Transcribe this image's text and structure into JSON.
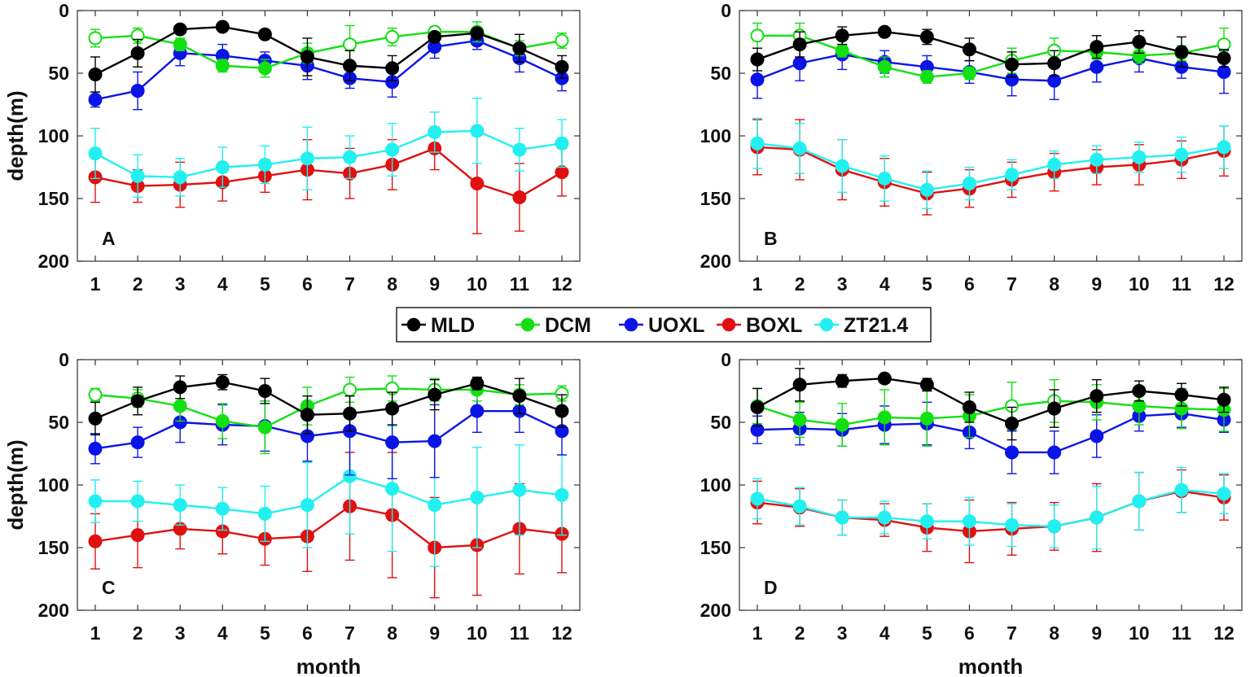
{
  "chart_data": {
    "type": "line",
    "xlabel": "month",
    "ylabel": "depth(m)",
    "categories": [
      "1",
      "2",
      "3",
      "4",
      "5",
      "6",
      "7",
      "8",
      "9",
      "10",
      "11",
      "12"
    ],
    "ylim": [
      0,
      200
    ],
    "y_reversed": true,
    "yticks": [
      "0",
      "50",
      "100",
      "150",
      "200"
    ],
    "grid": false,
    "legend": {
      "position": "center",
      "entries": [
        {
          "name": "MLD",
          "color": "#000000"
        },
        {
          "name": "DCM",
          "color": "#12e012"
        },
        {
          "name": "UOXL",
          "color": "#0a14e6"
        },
        {
          "name": "BOXL",
          "color": "#e01010"
        },
        {
          "name": "ZT21.4",
          "color": "#22f0f0"
        }
      ]
    },
    "panels": [
      {
        "label": "A",
        "series": [
          {
            "name": "BOXL",
            "color": "#e01010",
            "values": [
              133,
              140,
              139,
              137,
              132,
              127,
              130,
              123,
              110,
              138,
              149,
              129
            ],
            "errors": [
              20,
              13,
              18,
              15,
              13,
              24,
              20,
              20,
              17,
              40,
              27,
              19
            ]
          },
          {
            "name": "ZT21.4",
            "color": "#22f0f0",
            "values": [
              114,
              132,
              133,
              125,
              123,
              118,
              117,
              111,
              97,
              96,
              111,
              106
            ],
            "errors": [
              20,
              17,
              15,
              16,
              15,
              25,
              17,
              21,
              16,
              26,
              17,
              19
            ]
          },
          {
            "name": "UOXL",
            "color": "#0a14e6",
            "values": [
              71,
              64,
              34,
              36,
              40,
              44,
              54,
              57,
              29,
              24,
              38,
              54
            ],
            "errors": [
              6,
              15,
              10,
              9,
              7,
              11,
              8,
              12,
              9,
              7,
              11,
              10
            ]
          },
          {
            "name": "DCM",
            "color": "#12e012",
            "values": [
              22,
              20,
              27,
              44,
              46,
              34,
              27,
              21,
              17,
              17,
              30,
              24
            ],
            "errors": [
              7,
              6,
              5,
              5,
              7,
              8,
              15,
              7,
              4,
              8,
              6,
              6
            ],
            "hollow": [
              true,
              true,
              false,
              false,
              false,
              false,
              true,
              true,
              true,
              true,
              false,
              true
            ]
          },
          {
            "name": "MLD",
            "color": "#000000",
            "values": [
              51,
              34,
              15,
              13,
              19,
              37,
              44,
              46,
              21,
              18,
              30,
              45
            ],
            "errors": [
              14,
              11,
              0,
              0,
              0,
              15,
              12,
              10,
              0,
              0,
              11,
              9
            ]
          }
        ]
      },
      {
        "label": "B",
        "series": [
          {
            "name": "BOXL",
            "color": "#e01010",
            "values": [
              109,
              111,
              127,
              137,
              146,
              142,
              135,
              129,
              125,
              123,
              119,
              112
            ],
            "errors": [
              22,
              24,
              24,
              19,
              17,
              15,
              14,
              15,
              14,
              16,
              15,
              20
            ]
          },
          {
            "name": "ZT21.4",
            "color": "#22f0f0",
            "values": [
              106,
              110,
              124,
              134,
              143,
              138,
              131,
              123,
              119,
              117,
              115,
              109
            ],
            "errors": [
              20,
              20,
              21,
              18,
              15,
              13,
              12,
              11,
              11,
              12,
              14,
              17
            ]
          },
          {
            "name": "UOXL",
            "color": "#0a14e6",
            "values": [
              55,
              42,
              35,
              41,
              45,
              49,
              55,
              56,
              45,
              38,
              45,
              49
            ],
            "errors": [
              15,
              14,
              12,
              9,
              9,
              9,
              13,
              15,
              12,
              11,
              9,
              17
            ]
          },
          {
            "name": "DCM",
            "color": "#12e012",
            "values": [
              20,
              20,
              32,
              45,
              53,
              50,
              40,
              32,
              33,
              36,
              34,
              27
            ],
            "errors": [
              10,
              10,
              5,
              8,
              5,
              5,
              10,
              10,
              6,
              6,
              6,
              13
            ],
            "hollow": [
              true,
              true,
              false,
              false,
              false,
              false,
              true,
              true,
              false,
              false,
              false,
              true
            ]
          },
          {
            "name": "MLD",
            "color": "#000000",
            "values": [
              39,
              27,
              20,
              17,
              21,
              31,
              43,
              42,
              29,
              25,
              33,
              38
            ],
            "errors": [
              9,
              10,
              7,
              0,
              6,
              9,
              10,
              10,
              9,
              9,
              12,
              7
            ]
          }
        ]
      },
      {
        "label": "C",
        "series": [
          {
            "name": "BOXL",
            "color": "#e01010",
            "values": [
              145,
              140,
              135,
              137,
              143,
              141,
              117,
              124,
              150,
              148,
              135,
              139
            ],
            "errors": [
              22,
              26,
              16,
              18,
              21,
              28,
              43,
              50,
              40,
              40,
              36,
              31
            ]
          },
          {
            "name": "ZT21.4",
            "color": "#22f0f0",
            "values": [
              113,
              113,
              116,
              119,
              123,
              116,
              93,
              103,
              116,
              110,
              104,
              108
            ],
            "errors": [
              17,
              16,
              16,
              17,
              22,
              34,
              46,
              50,
              49,
              40,
              36,
              32
            ]
          },
          {
            "name": "UOXL",
            "color": "#0a14e6",
            "values": [
              71,
              66,
              50,
              52,
              53,
              61,
              57,
              66,
              65,
              41,
              41,
              57
            ],
            "errors": [
              12,
              12,
              16,
              16,
              20,
              20,
              35,
              29,
              29,
              17,
              17,
              19
            ]
          },
          {
            "name": "DCM",
            "color": "#12e012",
            "values": [
              28,
              31,
              37,
              49,
              54,
              37,
              24,
              23,
              24,
              24,
              28,
              27
            ],
            "errors": [
              5,
              7,
              12,
              14,
              21,
              15,
              10,
              10,
              9,
              9,
              8,
              6
            ],
            "hollow": [
              true,
              true,
              false,
              false,
              false,
              false,
              true,
              true,
              true,
              false,
              false,
              true
            ]
          },
          {
            "name": "MLD",
            "color": "#000000",
            "values": [
              47,
              33,
              22,
              18,
              25,
              44,
              43,
              39,
              28,
              19,
              29,
              41
            ],
            "errors": [
              13,
              11,
              9,
              6,
              10,
              15,
              14,
              13,
              12,
              5,
              14,
              13
            ]
          }
        ]
      },
      {
        "label": "D",
        "series": [
          {
            "name": "BOXL",
            "color": "#e01010",
            "values": [
              114,
              118,
              126,
              128,
              134,
              137,
              135,
              133,
              126,
              113,
              105,
              110
            ],
            "errors": [
              17,
              15,
              14,
              13,
              19,
              25,
              21,
              19,
              27,
              23,
              17,
              18
            ]
          },
          {
            "name": "ZT21.4",
            "color": "#22f0f0",
            "values": [
              111,
              117,
              126,
              126,
              129,
              129,
              132,
              133,
              126,
              113,
              104,
              107
            ],
            "errors": [
              16,
              15,
              14,
              13,
              14,
              19,
              17,
              17,
              25,
              23,
              18,
              16
            ]
          },
          {
            "name": "UOXL",
            "color": "#0a14e6",
            "values": [
              56,
              55,
              56,
              52,
              51,
              58,
              74,
              74,
              61,
              45,
              43,
              48
            ],
            "errors": [
              11,
              13,
              13,
              15,
              17,
              13,
              17,
              17,
              17,
              12,
              11,
              10
            ]
          },
          {
            "name": "DCM",
            "color": "#12e012",
            "values": [
              37,
              48,
              52,
              46,
              47,
              45,
              37,
              33,
              34,
              37,
              39,
              40
            ],
            "errors": [
              14,
              14,
              17,
              22,
              22,
              17,
              19,
              17,
              14,
              15,
              16,
              17
            ],
            "hollow": [
              true,
              false,
              false,
              false,
              false,
              false,
              true,
              true,
              false,
              false,
              false,
              false
            ]
          },
          {
            "name": "MLD",
            "color": "#000000",
            "values": [
              38,
              20,
              17,
              15,
              20,
              38,
              51,
              39,
              29,
              25,
              28,
              32
            ],
            "errors": [
              15,
              13,
              5,
              0,
              5,
              12,
              13,
              15,
              13,
              8,
              9,
              10
            ]
          }
        ]
      }
    ]
  }
}
